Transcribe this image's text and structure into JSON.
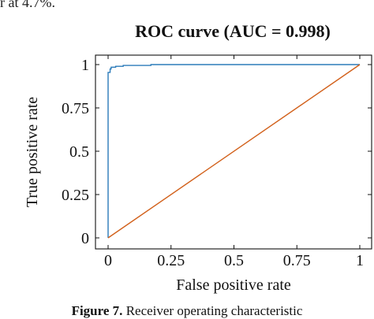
{
  "header_fragment": "r at 4.7%.",
  "caption": {
    "label": "Figure 7.",
    "text": "Receiver operating characteristic"
  },
  "chart_data": {
    "type": "line",
    "title": "ROC curve (AUC = 0.998)",
    "xlabel": "False positive rate",
    "ylabel": "True positive rate",
    "xlim": [
      0,
      1
    ],
    "ylim": [
      0,
      1
    ],
    "xticks": [
      0,
      0.25,
      0.5,
      0.75,
      1
    ],
    "xtick_labels": [
      "0",
      "0.25",
      "0.5",
      "0.75",
      "1"
    ],
    "yticks": [
      0,
      0.25,
      0.5,
      0.75,
      1
    ],
    "ytick_labels": [
      "0",
      "0.25",
      "0.5",
      "0.75",
      "1"
    ],
    "grid": false,
    "series": [
      {
        "color": "#2b7bba",
        "x": [
          0,
          0,
          0.008,
          0.008,
          0.012,
          0.012,
          0.03,
          0.03,
          0.06,
          0.06,
          0.17,
          0.17,
          1
        ],
        "y": [
          0,
          0.955,
          0.955,
          0.975,
          0.975,
          0.985,
          0.985,
          0.99,
          0.99,
          0.995,
          0.995,
          1,
          1
        ]
      },
      {
        "color": "#d2601a",
        "x": [
          0,
          1
        ],
        "y": [
          0,
          1
        ]
      }
    ]
  }
}
